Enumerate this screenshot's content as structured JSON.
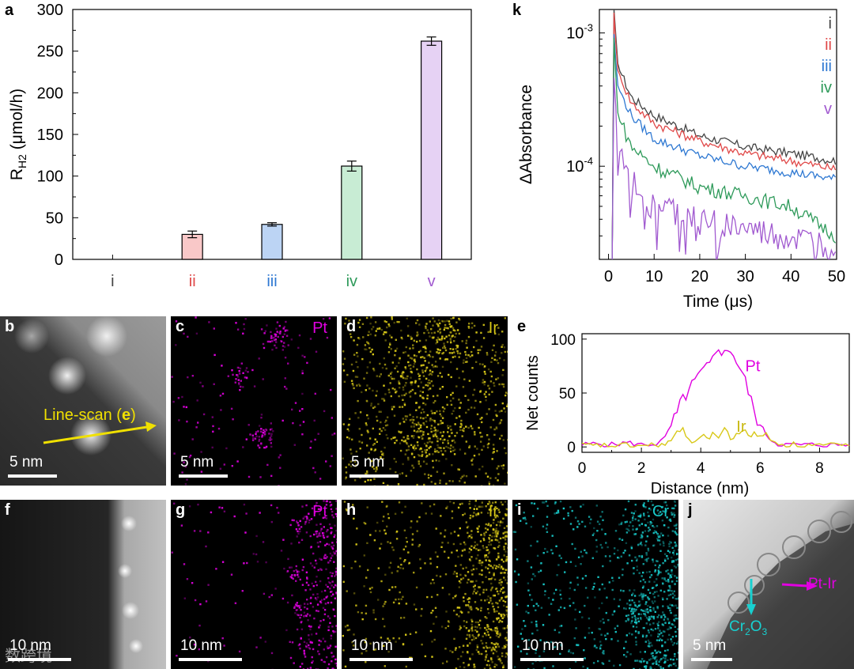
{
  "panels": {
    "a": "a",
    "b": "b",
    "c": "c",
    "d": "d",
    "e": "e",
    "f": "f",
    "g": "g",
    "h": "h",
    "i": "i",
    "j": "j",
    "k": "k"
  },
  "colors": {
    "i": "#444444",
    "ii": "#e04848",
    "iii": "#2e78d2",
    "iv": "#2e9a5a",
    "v": "#a15ad0",
    "pt": "#e000e0",
    "ir": "#d8c818",
    "cr": "#18c8c8",
    "linescan": "#f0e000"
  },
  "chart_data": [
    {
      "id": "a",
      "type": "bar",
      "ylabel_main": "R",
      "ylabel_sub": "H2",
      "ylabel_unit": " (μmol/h)",
      "ylim": [
        0,
        300
      ],
      "yticks": [
        0,
        50,
        100,
        150,
        200,
        250,
        300
      ],
      "categories": [
        "i",
        "ii",
        "iii",
        "iv",
        "v"
      ],
      "values": [
        0,
        30,
        42,
        112,
        262
      ],
      "errors": [
        0,
        4,
        2,
        6,
        5
      ],
      "fill": [
        "#ffffff",
        "#f9c8c8",
        "#bcd4f4",
        "#c8ecd4",
        "#e6d2f4"
      ]
    },
    {
      "id": "k",
      "type": "line",
      "ylabel": "ΔAbsorbance",
      "xlabel": "Time (μs)",
      "yscale": "log",
      "xlim": [
        -2,
        50
      ],
      "ylim": [
        2e-05,
        0.0015
      ],
      "xticks": [
        0,
        10,
        20,
        30,
        40,
        50
      ],
      "ytick_labels": [
        {
          "value": 0.001,
          "base": "10",
          "exp": "-3"
        },
        {
          "value": 0.0001,
          "base": "10",
          "exp": "-4"
        }
      ],
      "legend": [
        "i",
        "ii",
        "iii",
        "iv",
        "v"
      ],
      "series": [
        {
          "name": "i",
          "peak": 0.00152,
          "shape": [
            [
              2,
              0.00058
            ],
            [
              5,
              0.00033
            ],
            [
              10,
              0.00024
            ],
            [
              20,
              0.00017
            ],
            [
              30,
              0.00014
            ],
            [
              40,
              0.000125
            ],
            [
              50,
              0.00011
            ]
          ],
          "noise": 0.05
        },
        {
          "name": "ii",
          "peak": 0.00142,
          "shape": [
            [
              2,
              0.00052
            ],
            [
              5,
              0.0003
            ],
            [
              10,
              0.00021
            ],
            [
              20,
              0.000155
            ],
            [
              30,
              0.000125
            ],
            [
              40,
              0.00011
            ],
            [
              50,
              9.5e-05
            ]
          ],
          "noise": 0.05
        },
        {
          "name": "iii",
          "peak": 0.00098,
          "shape": [
            [
              2,
              0.0004
            ],
            [
              5,
              0.00024
            ],
            [
              10,
              0.00016
            ],
            [
              20,
              0.00012
            ],
            [
              30,
              0.0001
            ],
            [
              40,
              9e-05
            ],
            [
              50,
              8e-05
            ]
          ],
          "noise": 0.05
        },
        {
          "name": "iv",
          "peak": 0.00092,
          "shape": [
            [
              2,
              0.00025
            ],
            [
              5,
              0.00014
            ],
            [
              10,
              0.0001
            ],
            [
              20,
              7e-05
            ],
            [
              30,
              6e-05
            ],
            [
              40,
              5e-05
            ],
            [
              50,
              3e-05
            ]
          ],
          "noise": 0.08
        },
        {
          "name": "v",
          "peak": 0.00046,
          "shape": [
            [
              2,
              0.00015
            ],
            [
              5,
              8e-05
            ],
            [
              10,
              5e-05
            ],
            [
              20,
              4e-05
            ],
            [
              30,
              3.3e-05
            ],
            [
              40,
              2.8e-05
            ],
            [
              50,
              2.5e-05
            ]
          ],
          "noise": 0.16
        }
      ]
    },
    {
      "id": "e",
      "type": "line",
      "ylabel": "Net counts",
      "xlabel": "Distance (nm)",
      "xlim": [
        0,
        9
      ],
      "ylim": [
        -5,
        105
      ],
      "xticks": [
        0,
        2,
        4,
        6,
        8
      ],
      "yticks": [
        0,
        50,
        100
      ],
      "series": [
        {
          "name": "Pt",
          "x": [
            0,
            0.5,
            1,
            1.5,
            2,
            2.5,
            2.8,
            3.0,
            3.2,
            3.4,
            3.6,
            3.8,
            4.0,
            4.2,
            4.4,
            4.6,
            4.8,
            5.0,
            5.2,
            5.4,
            5.6,
            5.8,
            6.0,
            6.2,
            6.4,
            6.6,
            7.0,
            8.0,
            9.0
          ],
          "y": [
            2,
            3,
            2,
            4,
            2,
            3,
            8,
            20,
            30,
            45,
            52,
            60,
            68,
            72,
            80,
            95,
            85,
            92,
            80,
            68,
            52,
            32,
            20,
            12,
            6,
            3,
            2,
            2,
            2
          ]
        },
        {
          "name": "Ir",
          "x": [
            0,
            1,
            2,
            2.8,
            3.0,
            3.2,
            3.4,
            3.6,
            3.8,
            4.0,
            4.2,
            4.4,
            4.6,
            4.8,
            5.0,
            5.2,
            5.4,
            5.6,
            5.8,
            6.0,
            6.2,
            6.5,
            7,
            8,
            9
          ],
          "y": [
            1,
            1,
            1,
            2,
            6,
            12,
            16,
            8,
            4,
            12,
            6,
            14,
            8,
            18,
            6,
            12,
            16,
            10,
            14,
            8,
            12,
            4,
            2,
            1,
            1
          ]
        }
      ]
    }
  ],
  "micrographs": {
    "b": {
      "scale": "5 nm",
      "linescan": "Line-scan (",
      "linescan_ref": "e",
      "linescan_end": ")"
    },
    "c": {
      "element": "Pt",
      "scale": "5 nm"
    },
    "d": {
      "element": "Ir",
      "scale": "5 nm"
    },
    "f": {
      "scale": "10 nm"
    },
    "g": {
      "element": "Pt",
      "scale": "10 nm"
    },
    "h": {
      "element": "Ir",
      "scale": "10 nm"
    },
    "i": {
      "element": "Cr",
      "scale": "10 nm"
    },
    "j": {
      "scale": "5 nm",
      "label_ptir": "Pt-Ir",
      "label_cr_base": "Cr",
      "label_cr_sub1": "2",
      "label_cr_mid": "O",
      "label_cr_sub2": "3"
    }
  },
  "watermark": "数跨境"
}
